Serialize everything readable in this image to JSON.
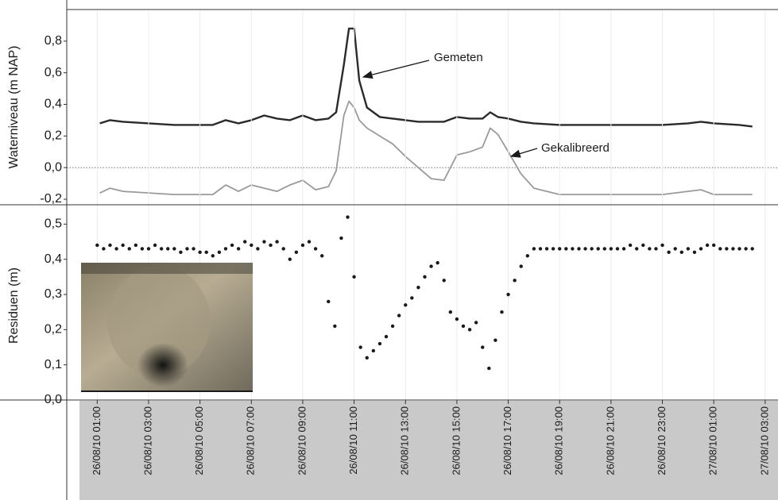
{
  "chart_data": [
    {
      "type": "line",
      "ylabel": "Waterniveau (m NAP)",
      "xlim": [
        "26/08/10 00:00",
        "27/08/10 03:30"
      ],
      "ylim": [
        -0.235,
        1.0
      ],
      "yticks": [
        {
          "value": -0.2,
          "label": "-0,2"
        },
        {
          "value": 0,
          "label": "0,0"
        },
        {
          "value": 0.2,
          "label": "0,2"
        },
        {
          "value": 0.4,
          "label": "0,4"
        },
        {
          "value": 0.6,
          "label": "0,6"
        },
        {
          "value": 0.8,
          "label": "0,8"
        }
      ],
      "grid": true,
      "x": [
        "26/08/10 01:06",
        "26/08/10 01:30",
        "26/08/10 02:00",
        "26/08/10 03:00",
        "26/08/10 04:00",
        "26/08/10 05:00",
        "26/08/10 05:30",
        "26/08/10 06:00",
        "26/08/10 06:30",
        "26/08/10 07:00",
        "26/08/10 07:30",
        "26/08/10 08:00",
        "26/08/10 08:30",
        "26/08/10 09:00",
        "26/08/10 09:30",
        "26/08/10 10:00",
        "26/08/10 10:18",
        "26/08/10 10:36",
        "26/08/10 10:48",
        "26/08/10 11:00",
        "26/08/10 11:12",
        "26/08/10 11:30",
        "26/08/10 12:00",
        "26/08/10 12:30",
        "26/08/10 13:00",
        "26/08/10 13:30",
        "26/08/10 14:00",
        "26/08/10 14:30",
        "26/08/10 15:00",
        "26/08/10 15:30",
        "26/08/10 16:00",
        "26/08/10 16:18",
        "26/08/10 16:36",
        "26/08/10 17:00",
        "26/08/10 17:30",
        "26/08/10 18:00",
        "26/08/10 19:00",
        "26/08/10 20:00",
        "26/08/10 21:00",
        "26/08/10 22:00",
        "26/08/10 23:00",
        "27/08/10 00:00",
        "27/08/10 00:30",
        "27/08/10 01:00",
        "27/08/10 02:00",
        "27/08/10 02:30"
      ],
      "series": [
        {
          "name": "Gemeten",
          "color": "#2a2a2a",
          "values": [
            0.28,
            0.3,
            0.29,
            0.28,
            0.27,
            0.27,
            0.27,
            0.3,
            0.28,
            0.3,
            0.33,
            0.31,
            0.3,
            0.33,
            0.3,
            0.31,
            0.35,
            0.65,
            0.88,
            0.88,
            0.55,
            0.38,
            0.32,
            0.31,
            0.3,
            0.29,
            0.29,
            0.29,
            0.32,
            0.31,
            0.31,
            0.35,
            0.32,
            0.31,
            0.29,
            0.28,
            0.27,
            0.27,
            0.27,
            0.27,
            0.27,
            0.28,
            0.29,
            0.28,
            0.27,
            0.26
          ]
        },
        {
          "name": "Gekalibreerd",
          "color": "#9a9a9a",
          "values": [
            -0.16,
            -0.13,
            -0.15,
            -0.16,
            -0.17,
            -0.17,
            -0.17,
            -0.11,
            -0.15,
            -0.11,
            -0.13,
            -0.15,
            -0.11,
            -0.08,
            -0.14,
            -0.12,
            -0.02,
            0.33,
            0.42,
            0.38,
            0.3,
            0.25,
            0.2,
            0.15,
            0.07,
            0.0,
            -0.07,
            -0.08,
            0.08,
            0.1,
            0.13,
            0.25,
            0.21,
            0.1,
            -0.04,
            -0.13,
            -0.17,
            -0.17,
            -0.17,
            -0.17,
            -0.17,
            -0.15,
            -0.14,
            -0.17,
            -0.17,
            -0.17
          ]
        }
      ]
    },
    {
      "type": "scatter",
      "ylabel": "Residuen (m)",
      "color": "#1a1a1a",
      "xlim": [
        "26/08/10 00:00",
        "27/08/10 03:30"
      ],
      "ylim": [
        0,
        0.555
      ],
      "yticks": [
        {
          "value": 0,
          "label": "0,0"
        },
        {
          "value": 0.1,
          "label": "0,1"
        },
        {
          "value": 0.2,
          "label": "0,2"
        },
        {
          "value": 0.3,
          "label": "0,3"
        },
        {
          "value": 0.4,
          "label": "0,4"
        },
        {
          "value": 0.5,
          "label": "0,5"
        }
      ],
      "xticks": [
        "26/08/10 01:00",
        "26/08/10 03:00",
        "26/08/10 05:00",
        "26/08/10 07:00",
        "26/08/10 09:00",
        "26/08/10 11:00",
        "26/08/10 13:00",
        "26/08/10 15:00",
        "26/08/10 17:00",
        "26/08/10 19:00",
        "26/08/10 21:00",
        "26/08/10 23:00",
        "27/08/10 01:00",
        "27/08/10 03:00"
      ],
      "x": [
        "26/08/10 01:00",
        "26/08/10 01:15",
        "26/08/10 01:30",
        "26/08/10 01:45",
        "26/08/10 02:00",
        "26/08/10 02:15",
        "26/08/10 02:30",
        "26/08/10 02:45",
        "26/08/10 03:00",
        "26/08/10 03:15",
        "26/08/10 03:30",
        "26/08/10 03:45",
        "26/08/10 04:00",
        "26/08/10 04:15",
        "26/08/10 04:30",
        "26/08/10 04:45",
        "26/08/10 05:00",
        "26/08/10 05:15",
        "26/08/10 05:30",
        "26/08/10 05:45",
        "26/08/10 06:00",
        "26/08/10 06:15",
        "26/08/10 06:30",
        "26/08/10 06:45",
        "26/08/10 07:00",
        "26/08/10 07:15",
        "26/08/10 07:30",
        "26/08/10 07:45",
        "26/08/10 08:00",
        "26/08/10 08:15",
        "26/08/10 08:30",
        "26/08/10 08:45",
        "26/08/10 09:00",
        "26/08/10 09:15",
        "26/08/10 09:30",
        "26/08/10 09:45",
        "26/08/10 10:00",
        "26/08/10 10:15",
        "26/08/10 10:30",
        "26/08/10 10:45",
        "26/08/10 11:00",
        "26/08/10 11:15",
        "26/08/10 11:30",
        "26/08/10 11:45",
        "26/08/10 12:00",
        "26/08/10 12:15",
        "26/08/10 12:30",
        "26/08/10 12:45",
        "26/08/10 13:00",
        "26/08/10 13:15",
        "26/08/10 13:30",
        "26/08/10 13:45",
        "26/08/10 14:00",
        "26/08/10 14:15",
        "26/08/10 14:30",
        "26/08/10 14:45",
        "26/08/10 15:00",
        "26/08/10 15:15",
        "26/08/10 15:30",
        "26/08/10 15:45",
        "26/08/10 16:00",
        "26/08/10 16:15",
        "26/08/10 16:30",
        "26/08/10 16:45",
        "26/08/10 17:00",
        "26/08/10 17:15",
        "26/08/10 17:30",
        "26/08/10 17:45",
        "26/08/10 18:00",
        "26/08/10 18:15",
        "26/08/10 18:30",
        "26/08/10 18:45",
        "26/08/10 19:00",
        "26/08/10 19:15",
        "26/08/10 19:30",
        "26/08/10 19:45",
        "26/08/10 20:00",
        "26/08/10 20:15",
        "26/08/10 20:30",
        "26/08/10 20:45",
        "26/08/10 21:00",
        "26/08/10 21:15",
        "26/08/10 21:30",
        "26/08/10 21:45",
        "26/08/10 22:00",
        "26/08/10 22:15",
        "26/08/10 22:30",
        "26/08/10 22:45",
        "26/08/10 23:00",
        "26/08/10 23:15",
        "26/08/10 23:30",
        "26/08/10 23:45",
        "27/08/10 00:00",
        "27/08/10 00:15",
        "27/08/10 00:30",
        "27/08/10 00:45",
        "27/08/10 01:00",
        "27/08/10 01:15",
        "27/08/10 01:30",
        "27/08/10 01:45",
        "27/08/10 02:00",
        "27/08/10 02:15",
        "27/08/10 02:30"
      ],
      "values": [
        0.44,
        0.43,
        0.44,
        0.43,
        0.44,
        0.43,
        0.44,
        0.43,
        0.43,
        0.44,
        0.43,
        0.43,
        0.43,
        0.42,
        0.43,
        0.43,
        0.42,
        0.42,
        0.41,
        0.42,
        0.43,
        0.44,
        0.43,
        0.45,
        0.44,
        0.43,
        0.45,
        0.44,
        0.45,
        0.43,
        0.4,
        0.42,
        0.44,
        0.45,
        0.43,
        0.41,
        0.28,
        0.21,
        0.46,
        0.52,
        0.35,
        0.15,
        0.12,
        0.14,
        0.16,
        0.18,
        0.21,
        0.24,
        0.27,
        0.29,
        0.32,
        0.35,
        0.38,
        0.39,
        0.34,
        0.25,
        0.23,
        0.21,
        0.2,
        0.22,
        0.15,
        0.09,
        0.17,
        0.25,
        0.3,
        0.34,
        0.38,
        0.41,
        0.43,
        0.43,
        0.43,
        0.43,
        0.43,
        0.43,
        0.43,
        0.43,
        0.43,
        0.43,
        0.43,
        0.43,
        0.43,
        0.43,
        0.43,
        0.44,
        0.43,
        0.44,
        0.43,
        0.43,
        0.44,
        0.42,
        0.43,
        0.42,
        0.43,
        0.42,
        0.43,
        0.44,
        0.44,
        0.43,
        0.43,
        0.43,
        0.43,
        0.43,
        0.43
      ]
    }
  ]
}
